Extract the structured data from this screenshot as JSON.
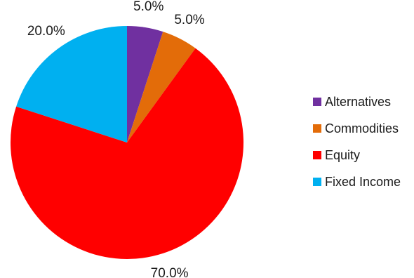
{
  "chart_data": {
    "type": "pie",
    "title": "",
    "legend_position": "right",
    "categories": [
      "Alternatives",
      "Commodities",
      "Equity",
      "Fixed Income"
    ],
    "values": [
      5.0,
      5.0,
      70.0,
      20.0
    ],
    "value_labels": [
      "5.0%",
      "5.0%",
      "70.0%",
      "20.0%"
    ],
    "colors": [
      "#7030a0",
      "#e36c09",
      "#ff0000",
      "#00b0f0"
    ],
    "start_angle_deg": 0,
    "direction": "clockwise"
  }
}
